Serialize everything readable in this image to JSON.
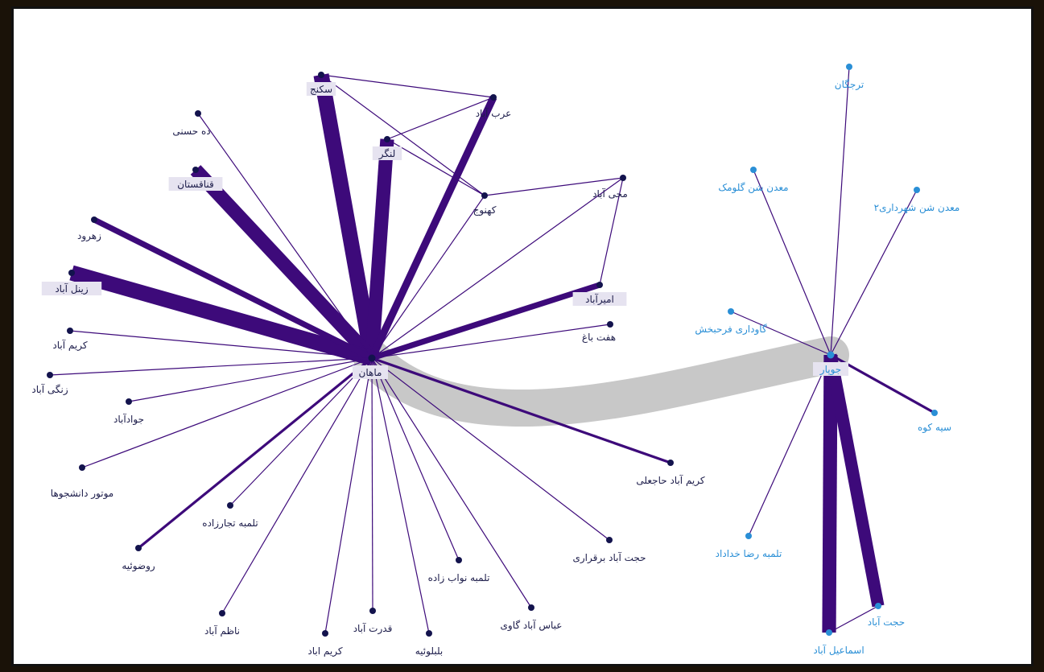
{
  "colors": {
    "edge": "#3d0a7a",
    "node_dark": "#13134d",
    "node_blue": "#2a8fd6",
    "label_dark": "#1c1c4a",
    "label_blue": "#2a8fd6",
    "bridge": "#c8c8c8"
  },
  "hubs": [
    {
      "id": "mahan",
      "label": "ماهان",
      "group": "dark"
    },
    {
      "id": "jupar",
      "label": "جوپار",
      "group": "blue"
    }
  ],
  "nodes": [
    {
      "id": "sekanj",
      "label": "سکنج",
      "group": "dark",
      "boxed": true
    },
    {
      "id": "arababad",
      "label": "عرب آباد",
      "group": "dark"
    },
    {
      "id": "langar",
      "label": "لنگر",
      "group": "dark",
      "boxed": true
    },
    {
      "id": "dehhosni",
      "label": "ده حسنی",
      "group": "dark"
    },
    {
      "id": "ghanaghestan",
      "label": "قناقستان",
      "group": "dark",
      "boxed": true
    },
    {
      "id": "kahnuj",
      "label": "کهنوج",
      "group": "dark"
    },
    {
      "id": "mohiabad",
      "label": "محی آباد",
      "group": "dark"
    },
    {
      "id": "zahrud",
      "label": "زهرود",
      "group": "dark"
    },
    {
      "id": "zeynalabad",
      "label": "زینل آباد",
      "group": "dark",
      "boxed": true
    },
    {
      "id": "amirabad",
      "label": "امیرآباد",
      "group": "dark",
      "boxed": true
    },
    {
      "id": "haftbagh",
      "label": "هفت باغ",
      "group": "dark"
    },
    {
      "id": "karimabad1",
      "label": "کریم آباد",
      "group": "dark"
    },
    {
      "id": "zangiabad",
      "label": "زنگی آباد",
      "group": "dark"
    },
    {
      "id": "javadabad",
      "label": "جوادآباد",
      "group": "dark"
    },
    {
      "id": "motor",
      "label": "موتور دانشجوها",
      "group": "dark"
    },
    {
      "id": "karimhajali",
      "label": "کریم آباد حاجعلی",
      "group": "dark"
    },
    {
      "id": "tolombe_tajar",
      "label": "تلمبه تجارزاده",
      "group": "dark"
    },
    {
      "id": "rozuiyeh",
      "label": "روضوئیه",
      "group": "dark"
    },
    {
      "id": "hojatbarfarazi",
      "label": "حجت آباد برقراری",
      "group": "dark"
    },
    {
      "id": "tolombe_navab",
      "label": "تلمبه نواب زاده",
      "group": "dark"
    },
    {
      "id": "abbasabad",
      "label": "عباس آباد گاوی",
      "group": "dark"
    },
    {
      "id": "nazemabad",
      "label": "ناظم آباد",
      "group": "dark"
    },
    {
      "id": "ghodratabad",
      "label": "قدرت آباد",
      "group": "dark"
    },
    {
      "id": "karimabad2",
      "label": "کریم اباد",
      "group": "dark"
    },
    {
      "id": "balutiyeh",
      "label": "بلبلوئیه",
      "group": "dark"
    },
    {
      "id": "tarjegan",
      "label": "ترجگان",
      "group": "blue"
    },
    {
      "id": "madan_golumak",
      "label": "معدن شن گلومک",
      "group": "blue"
    },
    {
      "id": "madan_shahrdari",
      "label": "معدن شن شهرداری۲",
      "group": "blue"
    },
    {
      "id": "gavdari",
      "label": "گاوداری فرحبخش",
      "group": "blue"
    },
    {
      "id": "siyahkuh",
      "label": "سیه کوه",
      "group": "blue"
    },
    {
      "id": "tolombe_reza",
      "label": "تلمبه رضا خداداد",
      "group": "blue"
    },
    {
      "id": "hojatabad",
      "label": "حجت آباد",
      "group": "blue"
    },
    {
      "id": "esmailabad",
      "label": "اسماعیل آباد",
      "group": "blue"
    }
  ],
  "edges": [
    {
      "source": "mahan",
      "target": "sekanj",
      "weight": 10
    },
    {
      "source": "mahan",
      "target": "langar",
      "weight": 9
    },
    {
      "source": "mahan",
      "target": "arababad",
      "weight": 5
    },
    {
      "source": "mahan",
      "target": "ghanaghestan",
      "weight": 9
    },
    {
      "source": "mahan",
      "target": "zeynalabad",
      "weight": 10
    },
    {
      "source": "mahan",
      "target": "zahrud",
      "weight": 4
    },
    {
      "source": "mahan",
      "target": "amirabad",
      "weight": 4
    },
    {
      "source": "mahan",
      "target": "dehhosni",
      "weight": 1
    },
    {
      "source": "mahan",
      "target": "kahnuj",
      "weight": 1
    },
    {
      "source": "mahan",
      "target": "mohiabad",
      "weight": 1
    },
    {
      "source": "mahan",
      "target": "haftbagh",
      "weight": 1
    },
    {
      "source": "mahan",
      "target": "karimabad1",
      "weight": 1
    },
    {
      "source": "mahan",
      "target": "zangiabad",
      "weight": 1
    },
    {
      "source": "mahan",
      "target": "javadabad",
      "weight": 1
    },
    {
      "source": "mahan",
      "target": "motor",
      "weight": 1
    },
    {
      "source": "mahan",
      "target": "karimhajali",
      "weight": 2
    },
    {
      "source": "mahan",
      "target": "tolombe_tajar",
      "weight": 1
    },
    {
      "source": "mahan",
      "target": "rozuiyeh",
      "weight": 2
    },
    {
      "source": "mahan",
      "target": "hojatbarfarazi",
      "weight": 1
    },
    {
      "source": "mahan",
      "target": "tolombe_navab",
      "weight": 1
    },
    {
      "source": "mahan",
      "target": "abbasabad",
      "weight": 1
    },
    {
      "source": "mahan",
      "target": "nazemabad",
      "weight": 1
    },
    {
      "source": "mahan",
      "target": "ghodratabad",
      "weight": 1
    },
    {
      "source": "mahan",
      "target": "karimabad2",
      "weight": 1
    },
    {
      "source": "mahan",
      "target": "balutiyeh",
      "weight": 1
    },
    {
      "source": "sekanj",
      "target": "arababad",
      "weight": 1
    },
    {
      "source": "sekanj",
      "target": "kahnuj",
      "weight": 1
    },
    {
      "source": "arababad",
      "target": "langar",
      "weight": 1
    },
    {
      "source": "langar",
      "target": "kahnuj",
      "weight": 1
    },
    {
      "source": "kahnuj",
      "target": "mohiabad",
      "weight": 1
    },
    {
      "source": "mohiabad",
      "target": "amirabad",
      "weight": 1
    },
    {
      "source": "jupar",
      "target": "tarjegan",
      "weight": 1
    },
    {
      "source": "jupar",
      "target": "madan_golumak",
      "weight": 1
    },
    {
      "source": "jupar",
      "target": "madan_shahrdari",
      "weight": 1
    },
    {
      "source": "jupar",
      "target": "gavdari",
      "weight": 1
    },
    {
      "source": "jupar",
      "target": "siyahkuh",
      "weight": 2
    },
    {
      "source": "jupar",
      "target": "tolombe_reza",
      "weight": 1
    },
    {
      "source": "jupar",
      "target": "esmailabad",
      "weight": 9
    },
    {
      "source": "jupar",
      "target": "hojatabad",
      "weight": 8
    },
    {
      "source": "esmailabad",
      "target": "hojatabad",
      "weight": 1
    },
    {
      "source": "mahan",
      "target": "jupar",
      "weight": 12,
      "bridge": true
    }
  ]
}
